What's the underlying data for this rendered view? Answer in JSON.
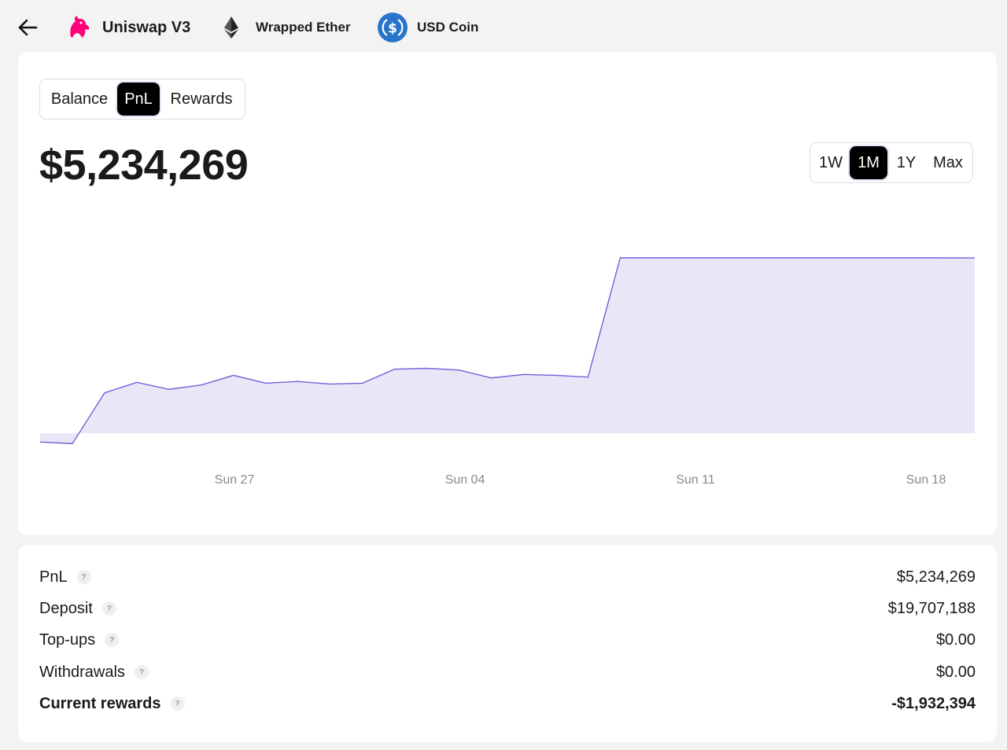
{
  "header": {
    "tokens": [
      {
        "label": "Uniswap V3",
        "icon": "uniswap-unicorn-icon"
      },
      {
        "label": "Wrapped Ether",
        "icon": "ethereum-icon"
      },
      {
        "label": "USD Coin",
        "icon": "usdc-icon"
      }
    ]
  },
  "view_tabs": {
    "balance": "Balance",
    "pnl": "PnL",
    "rewards": "Rewards",
    "selected": "PnL"
  },
  "headline_value": "$5,234,269",
  "range_tabs": {
    "w1": "1W",
    "m1": "1M",
    "y1": "1Y",
    "max": "Max",
    "selected": "1M"
  },
  "chart_data": {
    "type": "area",
    "x_tick_labels": [
      "Sun 27",
      "Sun 04",
      "Sun 11",
      "Sun 18"
    ],
    "values": [
      -0.1,
      -0.12,
      0.46,
      0.58,
      0.5,
      0.55,
      0.66,
      0.57,
      0.59,
      0.56,
      0.57,
      0.73,
      0.74,
      0.72,
      0.63,
      0.67,
      0.66,
      0.64,
      2.0,
      2.0,
      2.0,
      2.0,
      2.0,
      2.0,
      2.0,
      2.0,
      2.0,
      2.0,
      2.0,
      1.999
    ],
    "baseline": 0,
    "line_color": "#6e62d9",
    "fill_color": "#e9e7f7",
    "grid": false
  },
  "stats": [
    {
      "label": "PnL",
      "value": "$5,234,269",
      "bold": false
    },
    {
      "label": "Deposit",
      "value": "$19,707,188",
      "bold": false
    },
    {
      "label": "Top-ups",
      "value": "$0.00",
      "bold": false
    },
    {
      "label": "Withdrawals",
      "value": "$0.00",
      "bold": false
    },
    {
      "label": "Current rewards",
      "value": "-$1,932,394",
      "bold": true
    }
  ],
  "help_glyph": "?"
}
